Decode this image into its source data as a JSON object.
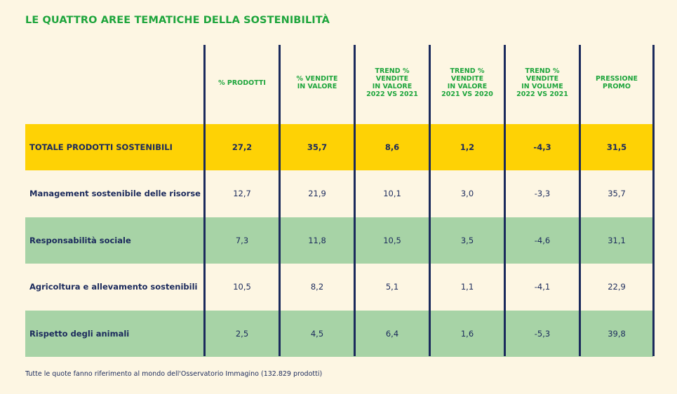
{
  "title": "LE QUATTRO AREE TEMATICHE DELLA SOSTENIBILITÀ",
  "columns": [
    "% PRODOTTI",
    "% VENDITE\nIN VALORE",
    "TREND %\nVENDITE\nIN VALORE\n2022 VS 2021",
    "TREND %\nVENDITE\nIN VALORE\n2021 VS 2020",
    "TREND %\nVENDITE\nIN VOLUME\n2022 VS 2021",
    "PRESSIONE\nPROMO"
  ],
  "rows": [
    {
      "label": "TOTALE PRODOTTI SOSTENIBILI",
      "values": [
        "27,2",
        "35,7",
        "8,6",
        "1,2",
        "-4,3",
        "31,5"
      ]
    },
    {
      "label": "Management sostenibile delle risorse",
      "values": [
        "12,7",
        "21,9",
        "10,1",
        "3,0",
        "-3,3",
        "35,7"
      ]
    },
    {
      "label": "Responsabilità sociale",
      "values": [
        "7,3",
        "11,8",
        "10,5",
        "3,5",
        "-4,6",
        "31,1"
      ]
    },
    {
      "label": "Agricoltura e allevamento sostenibili",
      "values": [
        "10,5",
        "8,2",
        "5,1",
        "1,1",
        "-4,1",
        "22,9"
      ]
    },
    {
      "label": "Rispetto degli animali",
      "values": [
        "2,5",
        "4,5",
        "6,4",
        "1,6",
        "-5,3",
        "39,8"
      ]
    }
  ],
  "footnote": "Tutte le quote fanno riferimento al mondo dell'Osservatorio Immagino (132.829 prodotti)",
  "colors": {
    "background": "#fdf6e3",
    "accent_green": "#1ea53c",
    "total_band": "#fed205",
    "green_band": "#a7d3a6",
    "navy": "#1b2a5c"
  }
}
